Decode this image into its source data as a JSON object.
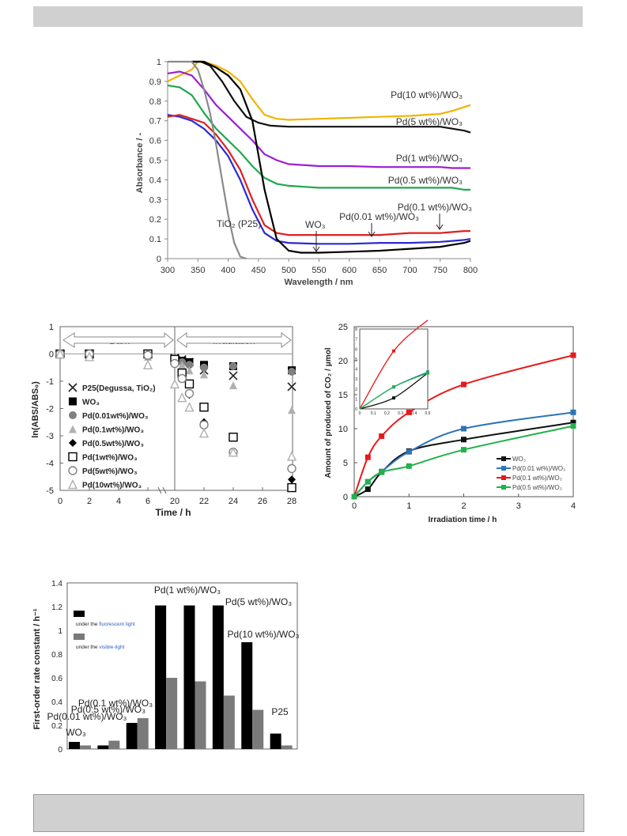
{
  "chart_data": [
    {
      "type": "line",
      "ylabel": "Absorbance / -",
      "xlabel": "Wavelength / nm",
      "xlim": [
        300,
        800
      ],
      "ylim": [
        0,
        1
      ],
      "xticks": [
        "300",
        "350",
        "400",
        "450",
        "500",
        "550",
        "600",
        "650",
        "700",
        "750",
        "800"
      ],
      "yticks": [
        "0",
        "0.1",
        "0.2",
        "0.3",
        "0.4",
        "0.5",
        "0.6",
        "0.7",
        "0.8",
        "0.9",
        "1"
      ],
      "annotations": [
        {
          "text": "Pd(10 wt%)/WO₃",
          "color": "#333333"
        },
        {
          "text": "Pd(5 wt%)/WO₃",
          "color": "#333333"
        },
        {
          "text": "Pd(1 wt%)/WO₃",
          "color": "#333333"
        },
        {
          "text": "Pd(0.5 wt%)/WO₃",
          "color": "#333333"
        },
        {
          "text": "Pd(0.1 wt%)/WO₃",
          "color": "#333333"
        },
        {
          "text": "Pd(0.01 wt%)/WO₃",
          "color": "#333333"
        },
        {
          "text": "WO₃",
          "color": "#333333"
        },
        {
          "text": "TiO₂ (P25)",
          "color": "#333333"
        }
      ],
      "series": [
        {
          "color": "#f0b400",
          "x": [
            300,
            320,
            340,
            350,
            360,
            380,
            400,
            420,
            440,
            460,
            480,
            500,
            550,
            600,
            650,
            700,
            750,
            770,
            790,
            800
          ],
          "y": [
            0.9,
            0.93,
            0.96,
            1.0,
            1.0,
            0.98,
            0.95,
            0.9,
            0.81,
            0.73,
            0.71,
            0.705,
            0.71,
            0.715,
            0.72,
            0.725,
            0.735,
            0.75,
            0.77,
            0.78
          ]
        },
        {
          "color": "#111111",
          "x": [
            340,
            355,
            370,
            390,
            410,
            430,
            450,
            470,
            500,
            550,
            600,
            650,
            700,
            750,
            770,
            790,
            800
          ],
          "y": [
            1.0,
            1.0,
            0.98,
            0.9,
            0.8,
            0.72,
            0.69,
            0.675,
            0.67,
            0.67,
            0.67,
            0.67,
            0.67,
            0.67,
            0.66,
            0.65,
            0.64
          ]
        },
        {
          "color": "#9b1fd0",
          "x": [
            300,
            320,
            340,
            360,
            380,
            400,
            420,
            440,
            460,
            480,
            500,
            550,
            600,
            650,
            700,
            750,
            770,
            790,
            800
          ],
          "y": [
            0.94,
            0.95,
            0.93,
            0.86,
            0.78,
            0.72,
            0.66,
            0.6,
            0.53,
            0.5,
            0.48,
            0.47,
            0.47,
            0.465,
            0.465,
            0.465,
            0.46,
            0.46,
            0.46
          ]
        },
        {
          "color": "#1fa84f",
          "x": [
            300,
            320,
            340,
            360,
            380,
            400,
            420,
            440,
            460,
            480,
            500,
            550,
            600,
            650,
            700,
            750,
            770,
            790,
            800
          ],
          "y": [
            0.88,
            0.87,
            0.83,
            0.74,
            0.66,
            0.6,
            0.54,
            0.47,
            0.41,
            0.38,
            0.37,
            0.36,
            0.36,
            0.36,
            0.36,
            0.36,
            0.36,
            0.35,
            0.35
          ]
        },
        {
          "color": "#2a2ad0",
          "x": [
            300,
            320,
            340,
            360,
            380,
            400,
            420,
            440,
            460,
            480,
            500,
            550,
            600,
            650,
            700,
            750,
            770,
            790,
            800
          ],
          "y": [
            0.73,
            0.72,
            0.7,
            0.66,
            0.6,
            0.52,
            0.4,
            0.25,
            0.13,
            0.09,
            0.08,
            0.075,
            0.075,
            0.08,
            0.08,
            0.085,
            0.09,
            0.095,
            0.1
          ]
        },
        {
          "color": "#e02020",
          "x": [
            300,
            320,
            340,
            350,
            360,
            380,
            400,
            420,
            440,
            460,
            480,
            500,
            550,
            600,
            650,
            700,
            750,
            770,
            790,
            800
          ],
          "y": [
            0.72,
            0.73,
            0.71,
            0.7,
            0.69,
            0.63,
            0.55,
            0.45,
            0.3,
            0.17,
            0.13,
            0.12,
            0.12,
            0.12,
            0.12,
            0.13,
            0.13,
            0.135,
            0.14,
            0.14
          ]
        },
        {
          "color": "#000000",
          "x": [
            340,
            360,
            380,
            400,
            420,
            440,
            460,
            480,
            500,
            520,
            550,
            600,
            650,
            700,
            750,
            770,
            790,
            800
          ],
          "y": [
            1.0,
            1.0,
            0.97,
            0.93,
            0.86,
            0.7,
            0.35,
            0.1,
            0.04,
            0.03,
            0.03,
            0.035,
            0.04,
            0.05,
            0.06,
            0.07,
            0.08,
            0.09
          ]
        },
        {
          "color": "#8a8a8a",
          "x": [
            300,
            320,
            340,
            350,
            360,
            370,
            380,
            390,
            400,
            410,
            420,
            430
          ],
          "y": [
            1.0,
            1.0,
            1.0,
            0.96,
            0.86,
            0.74,
            0.58,
            0.4,
            0.22,
            0.08,
            0.01,
            0.0
          ]
        }
      ]
    },
    {
      "type": "scatter",
      "xlabel": "Time / h",
      "ylabel": "ln(ABS/ABS₀)",
      "xlim": [
        0,
        28
      ],
      "ylim": [
        -5,
        1
      ],
      "xticks": [
        "0",
        "2",
        "4",
        "6",
        "20",
        "22",
        "24",
        "26",
        "28"
      ],
      "yticks": [
        "1",
        "0",
        "-1",
        "-2",
        "-3",
        "-4",
        "-5"
      ],
      "regions": [
        "Dark",
        "Irradiation"
      ],
      "series": [
        {
          "name": "P25(Degussa, TiO₂)",
          "marker": "x",
          "color": "#222222",
          "x": [
            0,
            2,
            6,
            20,
            20.5,
            21,
            22,
            24,
            28
          ],
          "y": [
            0,
            0,
            0,
            -0.15,
            -0.2,
            -0.3,
            -0.6,
            -0.8,
            -1.2
          ]
        },
        {
          "name": "WO₃",
          "marker": "square",
          "color": "#000000",
          "x": [
            0,
            2,
            6,
            20,
            20.5,
            21,
            22,
            24,
            28
          ],
          "y": [
            0,
            0,
            0,
            -0.2,
            -0.25,
            -0.3,
            -0.4,
            -0.45,
            -0.6
          ]
        },
        {
          "name": "Pd(0.01wt%)/WO₃",
          "marker": "circle",
          "color": "#808080",
          "x": [
            0,
            2,
            6,
            20,
            20.5,
            21,
            22,
            24,
            28
          ],
          "y": [
            0,
            0,
            0,
            -0.25,
            -0.3,
            -0.4,
            -0.5,
            -0.45,
            -0.65
          ]
        },
        {
          "name": "Pd(0.1wt%)/WO₃",
          "marker": "triangle",
          "color": "#b0b0b0",
          "x": [
            0,
            2,
            6,
            20,
            20.5,
            21,
            22,
            24,
            28
          ],
          "y": [
            0,
            -0.05,
            -0.1,
            -0.3,
            -0.4,
            -0.6,
            -0.75,
            -1.15,
            -2.05
          ]
        },
        {
          "name": "Pd(0.5wt%)/WO₃",
          "marker": "diamond",
          "color": "#000000",
          "x": [
            0,
            2,
            6,
            20,
            20.5,
            21,
            22,
            24,
            28
          ],
          "y": [
            0,
            0,
            -0.05,
            -0.3,
            -0.8,
            -1.5,
            -2.5,
            -3.6,
            -4.6
          ]
        },
        {
          "name": "Pd(1wt%)/WO₃",
          "marker": "square-open",
          "color": "#000000",
          "x": [
            0,
            2,
            6,
            20,
            20.5,
            21,
            22,
            24,
            28
          ],
          "y": [
            0,
            0,
            0,
            -0.2,
            -0.7,
            -1.1,
            -1.95,
            -3.05,
            -4.9
          ]
        },
        {
          "name": "Pd(5wt%)/WO₃",
          "marker": "circle-open",
          "color": "#808080",
          "x": [
            0,
            2,
            6,
            20,
            20.5,
            21,
            22,
            24,
            28
          ],
          "y": [
            0,
            0,
            -0.05,
            -0.35,
            -0.9,
            -1.45,
            -2.6,
            -3.6,
            -4.2
          ]
        },
        {
          "name": "Pd(10wt%)/WO₃",
          "marker": "triangle-open",
          "color": "#b0b0b0",
          "x": [
            0,
            2,
            6,
            20,
            20.5,
            21,
            22,
            24,
            28
          ],
          "y": [
            0,
            -0.1,
            -0.4,
            -1.1,
            -1.6,
            -1.95,
            -2.9,
            -3.6,
            -3.75
          ]
        }
      ]
    },
    {
      "type": "line",
      "xlabel": "Irradiation time / h",
      "ylabel": "Amount of produced of CO₂ / μmol",
      "xlim": [
        0,
        4
      ],
      "ylim": [
        0,
        25
      ],
      "xticks": [
        "0",
        "1",
        "2",
        "3",
        "4"
      ],
      "yticks": [
        "0",
        "5",
        "10",
        "15",
        "20",
        "25"
      ],
      "legend_position": "bottom-right",
      "series": [
        {
          "name": "WO₃",
          "color": "#111111",
          "x": [
            0,
            0.25,
            0.5,
            1,
            2,
            4
          ],
          "y": [
            0,
            1.1,
            3.6,
            6.7,
            8.4,
            10.9
          ]
        },
        {
          "name": "Pd(0.01 wt%)/WO₃",
          "color": "#2e75b6",
          "x": [
            0,
            0.25,
            0.5,
            1,
            2,
            4
          ],
          "y": [
            0,
            2.2,
            3.7,
            6.6,
            10.0,
            12.4
          ]
        },
        {
          "name": "Pd(0.1 wt%)/WO₃",
          "color": "#e8191d",
          "x": [
            0,
            0.25,
            0.5,
            1,
            2,
            4
          ],
          "y": [
            0,
            5.8,
            8.9,
            12.4,
            16.5,
            20.8
          ]
        },
        {
          "name": "Pd(0.5 wt%)/WO₃",
          "color": "#22b14c",
          "x": [
            0,
            0.25,
            0.5,
            1,
            2,
            4
          ],
          "y": [
            0,
            2.2,
            3.6,
            4.5,
            6.9,
            10.4
          ]
        }
      ],
      "inset": {
        "xlim": [
          0,
          0.5
        ],
        "ylim": [
          0,
          8
        ],
        "xticks": [
          "0",
          "0.1",
          "0.2",
          "0.3",
          "0.4",
          "0.5"
        ],
        "yticks": [
          "0",
          "1",
          "2",
          "3",
          "4",
          "5",
          "6",
          "7",
          "8"
        ]
      }
    },
    {
      "type": "bar",
      "ylabel": "First-order rate constant / h⁻¹",
      "ylim": [
        0,
        1.4
      ],
      "yticks": [
        "0",
        "0.2",
        "0.4",
        "0.6",
        "0.8",
        "1",
        "1.2",
        "1.4"
      ],
      "categories": [
        "WO₃",
        "Pd(0.01 wt%)/WO₃",
        "Pd(0.1 wt%)/WO₃",
        "Pd(0.5 wt%)/WO₃",
        "Pd(1 wt%)/WO₃",
        "Pd(5 wt%)/WO₃",
        "Pd(10 wt%)/WO₃",
        "P25"
      ],
      "series": [
        {
          "name": "under the fluorescent light",
          "color": "#000000",
          "values": [
            0.06,
            0.03,
            0.22,
            1.21,
            1.21,
            1.21,
            0.9,
            0.13
          ]
        },
        {
          "name": "under the visible-light",
          "color": "#7a7a7a",
          "values": [
            0.03,
            0.07,
            0.26,
            0.6,
            0.57,
            0.45,
            0.33,
            0.03
          ]
        }
      ],
      "legend": [
        {
          "prefix": "under the ",
          "highlight": "fluorescent light",
          "highlight_color": "#3060c0"
        },
        {
          "prefix": "under the ",
          "highlight": "visible-light",
          "highlight_color": "#3060c0"
        }
      ]
    }
  ]
}
